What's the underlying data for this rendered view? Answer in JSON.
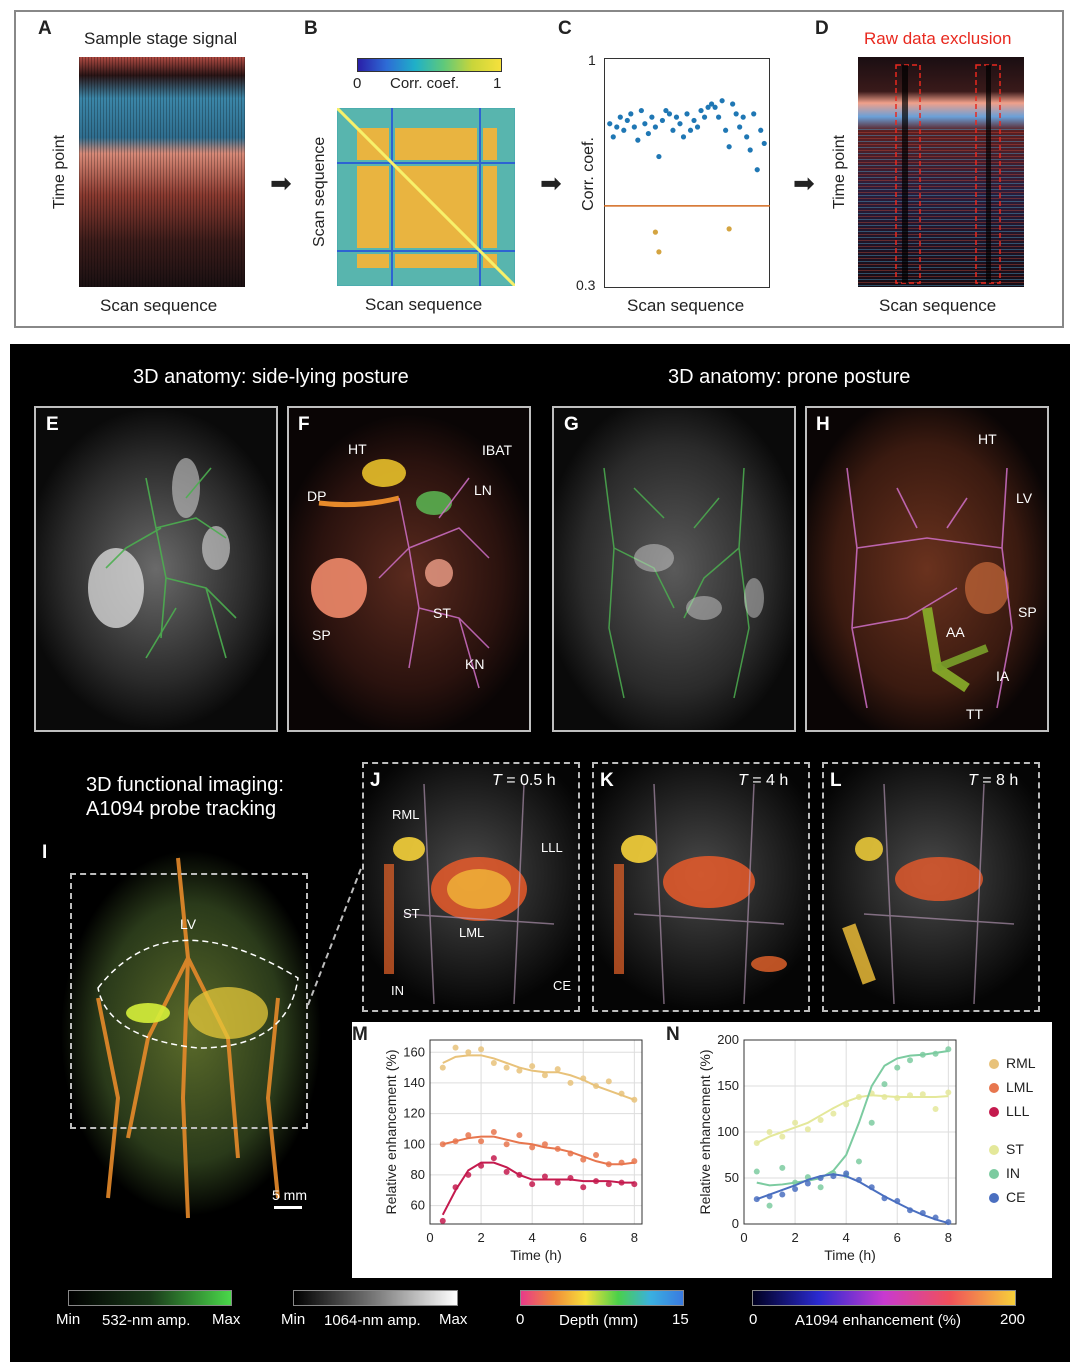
{
  "top": {
    "A": {
      "letter": "A",
      "title": "Sample stage signal",
      "ylabel": "Time point",
      "xlabel": "Scan sequence"
    },
    "B": {
      "letter": "B",
      "cbar_label": "Corr. coef.",
      "cbar_min": "0",
      "cbar_max": "1",
      "ylabel": "Scan sequence",
      "xlabel": "Scan sequence"
    },
    "C": {
      "letter": "C",
      "ylabel": "Corr. coef.",
      "xlabel": "Scan sequence",
      "ymax": "1",
      "ymin": "0.3"
    },
    "D": {
      "letter": "D",
      "title": "Raw data exclusion",
      "ylabel": "Time point",
      "xlabel": "Scan sequence"
    }
  },
  "section_titles": {
    "side": "3D anatomy: side-lying posture",
    "prone": "3D anatomy: prone posture",
    "functional_line1": "3D functional imaging:",
    "functional_line2": "A1094 probe tracking"
  },
  "panels": {
    "E": "E",
    "F": "F",
    "G": "G",
    "H": "H",
    "I": "I",
    "J": "J",
    "K": "K",
    "L": "L",
    "M": "M",
    "N": "N"
  },
  "F_labels": {
    "HT": "HT",
    "IBAT": "IBAT",
    "DP": "DP",
    "LN": "LN",
    "SP": "SP",
    "ST": "ST",
    "KN": "KN"
  },
  "H_labels": {
    "HT": "HT",
    "LV": "LV",
    "SP": "SP",
    "AA": "AA",
    "IA": "IA",
    "TT": "TT"
  },
  "I_labels": {
    "LV": "LV",
    "scale": "5 mm"
  },
  "J_labels": {
    "RML": "RML",
    "LLL": "LLL",
    "ST": "ST",
    "LML": "LML",
    "IN": "IN",
    "CE": "CE"
  },
  "times": {
    "J_pre": "T",
    "J_val": " = 0.5 h",
    "K_pre": "T",
    "K_val": " = 4 h",
    "L_pre": "T",
    "L_val": " = 8 h"
  },
  "colorbars": [
    {
      "min": "Min",
      "label": "532-nm amp.",
      "max": "Max"
    },
    {
      "min": "Min",
      "label": "1064-nm amp.",
      "max": "Max"
    },
    {
      "min": "0",
      "label": "Depth (mm)",
      "max": "15"
    },
    {
      "min": "0",
      "label": "A1094 enhancement (%)",
      "max": "200"
    }
  ],
  "colors": {
    "RML": "#e8c27a",
    "LML": "#e7764e",
    "LLL": "#c41a4e",
    "ST": "#e4e89a",
    "IN": "#7ccba0",
    "CE": "#4a6fc0",
    "threshold": "#d2691e",
    "scatter": "#1f77b4",
    "excluded": "#d4a441"
  },
  "chart_data": [
    {
      "panel": "C",
      "type": "scatter",
      "xlabel": "Scan sequence",
      "ylabel": "Corr. coef.",
      "ylim": [
        0.3,
        1
      ],
      "threshold": 0.55,
      "series": [
        {
          "values": [
            0.8,
            0.76,
            0.79,
            0.82,
            0.78,
            0.81,
            0.83,
            0.79,
            0.75,
            0.84,
            0.8,
            0.77,
            0.82,
            0.79,
            0.7,
            0.81,
            0.84,
            0.83,
            0.78,
            0.82,
            0.8,
            0.76,
            0.83,
            0.78,
            0.81,
            0.79,
            0.84,
            0.82,
            0.85,
            0.86,
            0.85,
            0.82,
            0.87,
            0.78,
            0.73,
            0.86,
            0.83,
            0.79,
            0.82,
            0.76,
            0.72,
            0.83,
            0.66,
            0.78,
            0.74
          ]
        },
        {
          "values": [
            null,
            null,
            null,
            null,
            null,
            null,
            null,
            null,
            null,
            null,
            null,
            null,
            null,
            0.47,
            0.41,
            null,
            null,
            null,
            null,
            null,
            null,
            null,
            null,
            null,
            null,
            null,
            null,
            null,
            null,
            null,
            null,
            null,
            null,
            null,
            0.48,
            null,
            null,
            null,
            null,
            null,
            null,
            null,
            null,
            null,
            null
          ]
        }
      ]
    },
    {
      "panel": "M",
      "type": "line",
      "xlabel": "Time (h)",
      "ylabel": "Relative enhancement (%)",
      "xlim": [
        0,
        8.3
      ],
      "ylim": [
        48,
        168
      ],
      "xticks": [
        "0",
        "2",
        "4",
        "6",
        "8"
      ],
      "yticks": [
        "60",
        "80",
        "100",
        "120",
        "140",
        "160"
      ],
      "x": [
        0.5,
        1.0,
        1.5,
        2.0,
        2.5,
        3.0,
        3.5,
        4.0,
        4.5,
        5.0,
        5.5,
        6.0,
        6.5,
        7.0,
        7.5,
        8.0
      ],
      "series": [
        {
          "name": "RML",
          "values": [
            150,
            163,
            160,
            162,
            153,
            150,
            148,
            151,
            145,
            149,
            140,
            143,
            138,
            141,
            133,
            129
          ],
          "smooth": [
            153,
            157,
            158,
            158,
            156,
            153,
            150,
            148,
            147,
            147,
            145,
            142,
            138,
            135,
            132,
            129
          ]
        },
        {
          "name": "LML",
          "values": [
            100,
            102,
            106,
            102,
            108,
            100,
            106,
            98,
            100,
            97,
            94,
            90,
            93,
            87,
            88,
            89
          ],
          "smooth": [
            100,
            102,
            104,
            105,
            105,
            103,
            101,
            100,
            98,
            97,
            95,
            92,
            89,
            87,
            87,
            88
          ]
        },
        {
          "name": "LLL",
          "values": [
            50,
            72,
            80,
            86,
            91,
            82,
            80,
            74,
            79,
            75,
            78,
            72,
            76,
            74,
            75,
            74
          ],
          "smooth": [
            54,
            70,
            83,
            88,
            88,
            85,
            80,
            77,
            77,
            77,
            77,
            76,
            76,
            76,
            75,
            75
          ]
        }
      ]
    },
    {
      "panel": "N",
      "type": "line",
      "xlabel": "Time (h)",
      "ylabel": "Relative enhancement (%)",
      "xlim": [
        0,
        8.3
      ],
      "ylim": [
        0,
        200
      ],
      "xticks": [
        "0",
        "2",
        "4",
        "6",
        "8"
      ],
      "yticks": [
        "0",
        "50",
        "100",
        "150",
        "200"
      ],
      "x": [
        0.5,
        1.0,
        1.5,
        2.0,
        2.5,
        3.0,
        3.5,
        4.0,
        4.5,
        5.0,
        5.5,
        6.0,
        6.5,
        7.0,
        7.5,
        8.0
      ],
      "series": [
        {
          "name": "ST",
          "values": [
            88,
            100,
            95,
            110,
            103,
            113,
            120,
            130,
            138,
            142,
            138,
            137,
            140,
            141,
            125,
            143
          ],
          "smooth": [
            88,
            95,
            100,
            105,
            110,
            118,
            126,
            133,
            138,
            140,
            139,
            138,
            138,
            138,
            138,
            139
          ]
        },
        {
          "name": "IN",
          "values": [
            57,
            20,
            61,
            45,
            51,
            40,
            55,
            53,
            68,
            110,
            152,
            170,
            178,
            184,
            185,
            190
          ],
          "smooth": [
            45,
            42,
            43,
            45,
            47,
            50,
            58,
            75,
            110,
            150,
            172,
            180,
            183,
            184,
            186,
            188
          ]
        },
        {
          "name": "CE",
          "values": [
            27,
            30,
            32,
            38,
            44,
            50,
            52,
            55,
            48,
            40,
            28,
            25,
            15,
            12,
            7,
            2
          ],
          "smooth": [
            27,
            32,
            37,
            42,
            48,
            52,
            54,
            52,
            46,
            38,
            30,
            23,
            16,
            10,
            5,
            1
          ]
        }
      ],
      "legend": [
        "RML",
        "LML",
        "LLL",
        "ST",
        "IN",
        "CE"
      ]
    }
  ]
}
